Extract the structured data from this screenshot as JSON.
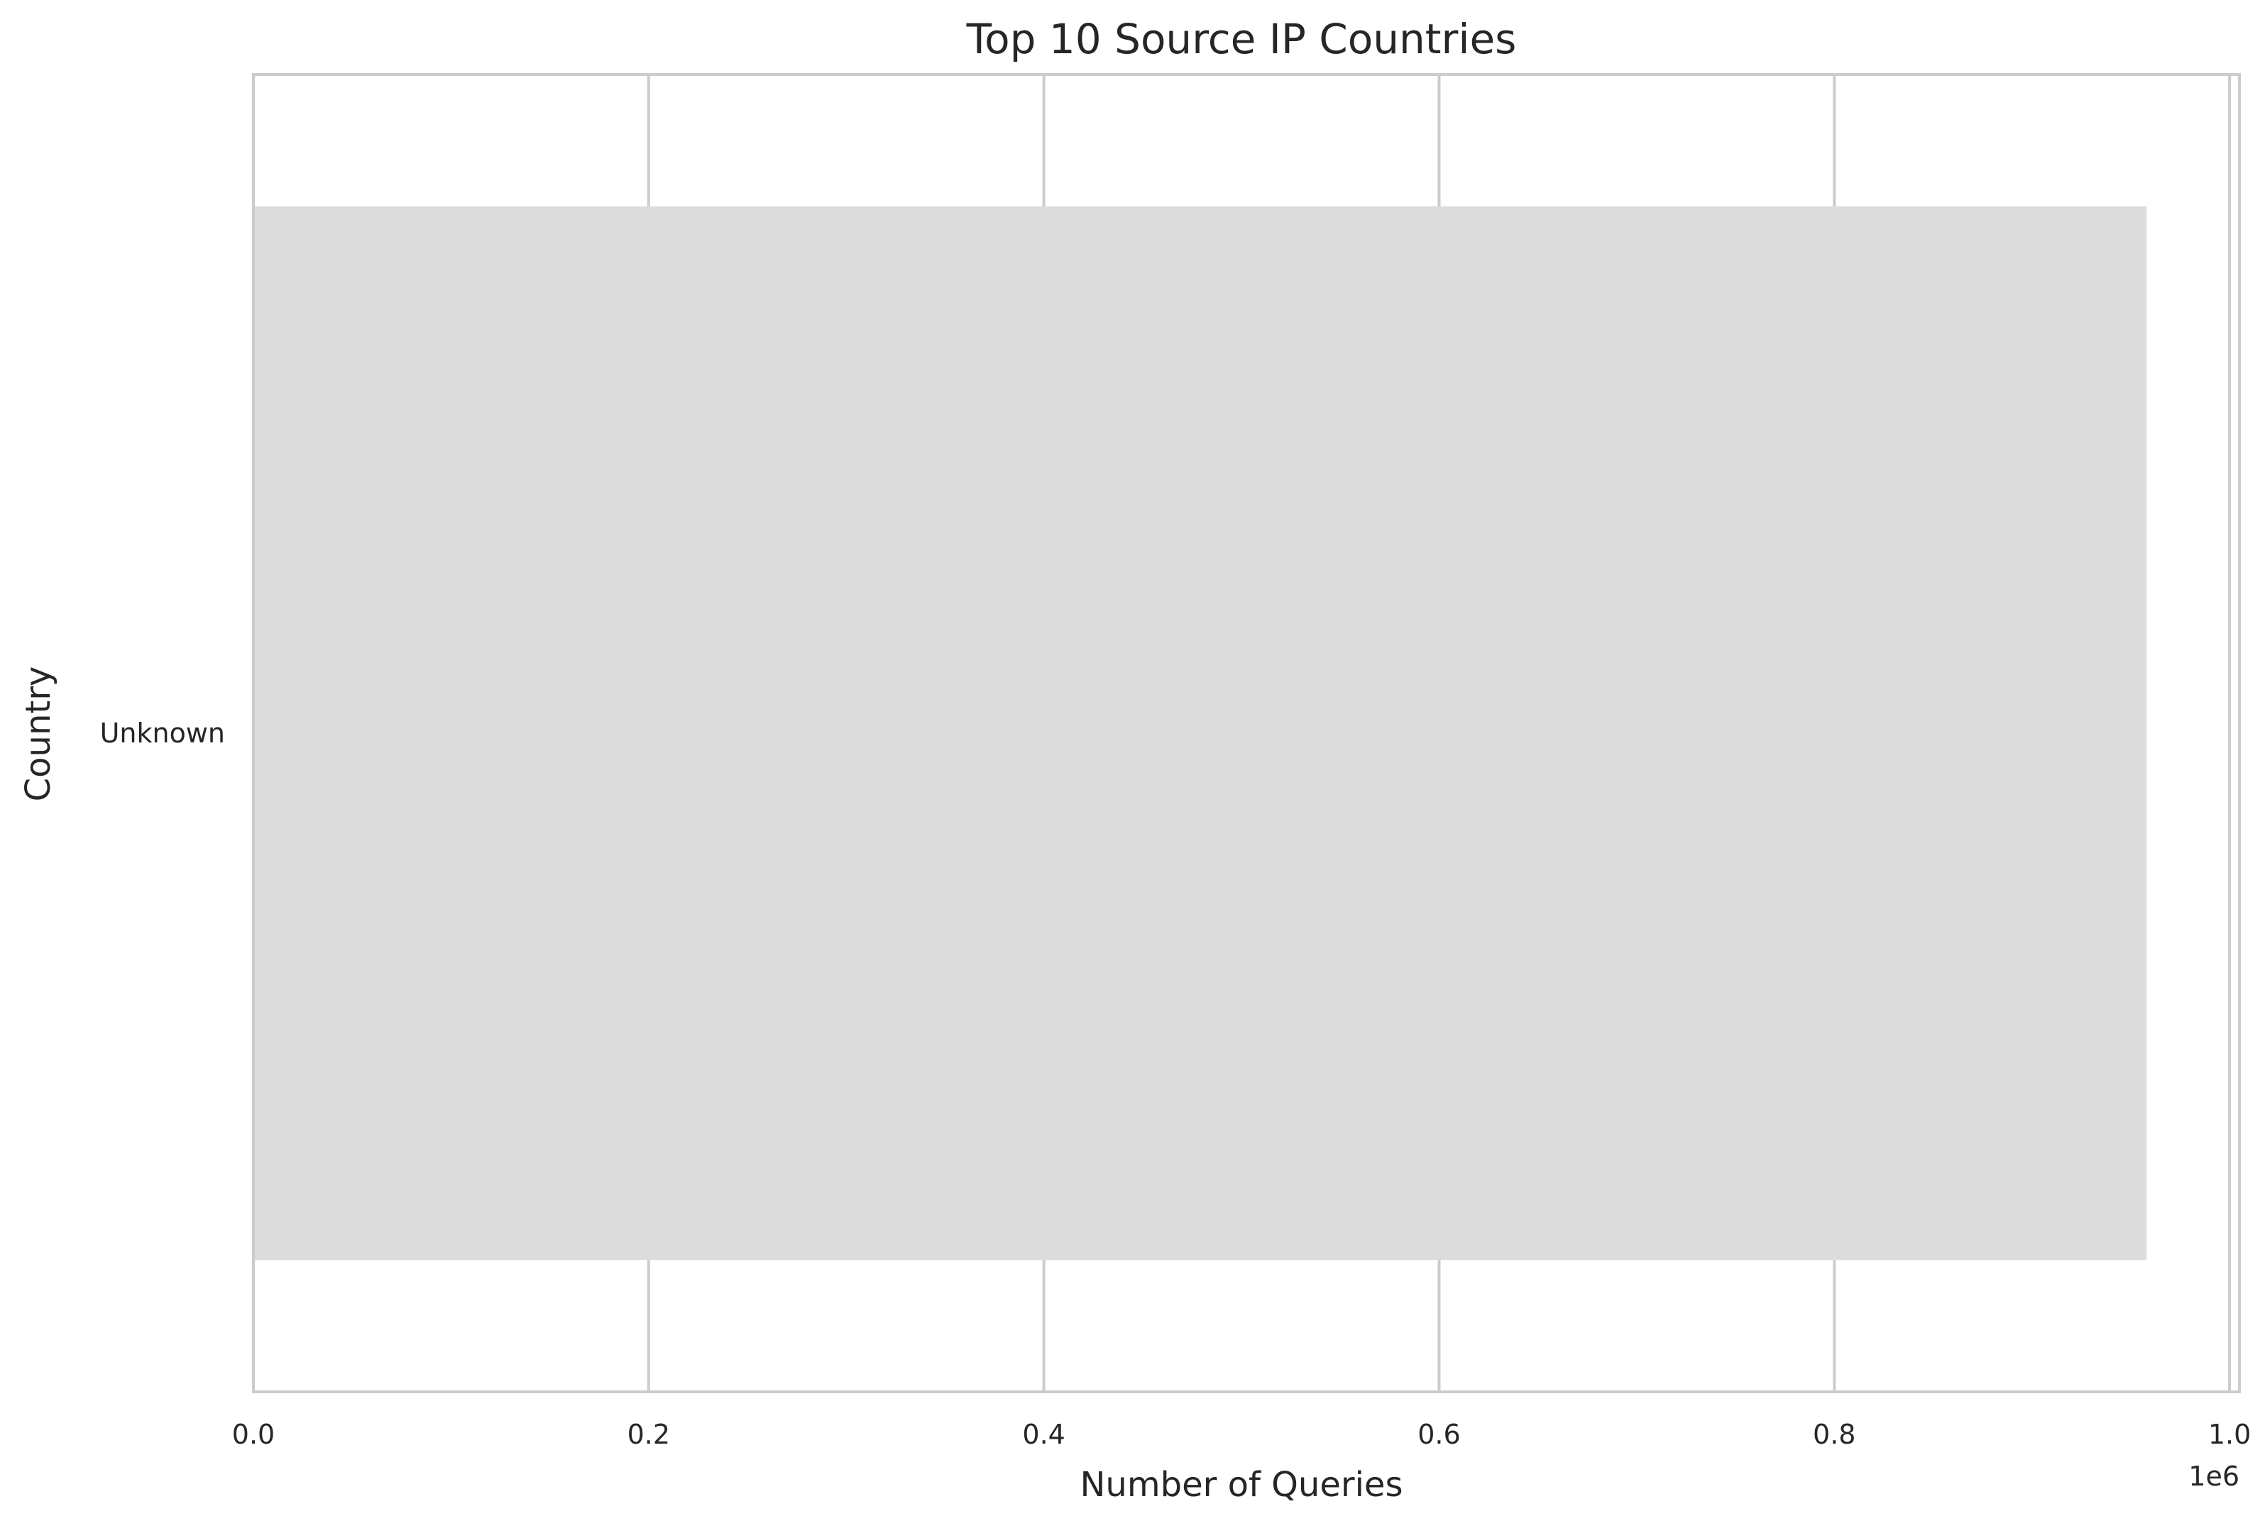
{
  "chart_data": {
    "type": "bar",
    "orientation": "horizontal",
    "title": "Top 10 Source IP Countries",
    "xlabel": "Number of Queries",
    "ylabel": "Country",
    "categories": [
      "Unknown"
    ],
    "values": [
      958000
    ],
    "xlim": [
      0,
      1005000
    ],
    "xticks": [
      0,
      200000,
      400000,
      600000,
      800000,
      1000000
    ],
    "xtick_labels": [
      "0.0",
      "0.2",
      "0.4",
      "0.6",
      "0.8",
      "1.0"
    ],
    "offset_label": "1e6",
    "grid": true,
    "bar_color": "#dcdcdc",
    "grid_color": "#cccccc",
    "axes_edge_color": "#cccccc"
  }
}
